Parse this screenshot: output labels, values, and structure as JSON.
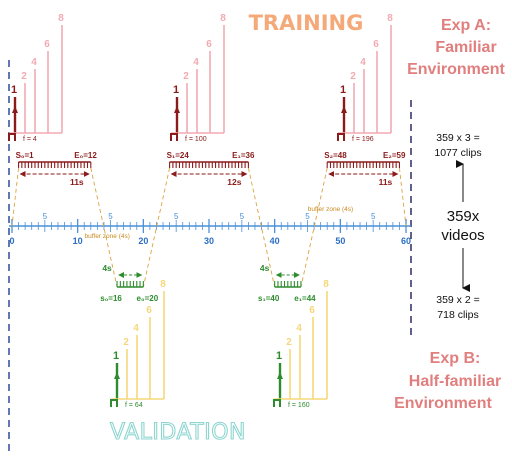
{
  "titles": {
    "training": "TRAINING",
    "validation": "VALIDATION"
  },
  "exp_a": {
    "line1": "Exp A:",
    "line2": "Familiar",
    "line3": "Environment"
  },
  "exp_b": {
    "line1": "Exp B:",
    "line2": "Half-familiar",
    "line3": "Environment"
  },
  "totals": {
    "top_line1": "359 x 3 =",
    "top_line2": "1077 clips",
    "mid_line1": "359x",
    "mid_line2": "videos",
    "bottom_line1": "359 x 2 =",
    "bottom_line2": "718 clips"
  },
  "axis": {
    "min": 0,
    "max": 60,
    "major_labels": [
      "0",
      "10",
      "20",
      "30",
      "40",
      "50",
      "60"
    ],
    "minor_labels": [
      "5",
      "5",
      "5",
      "5",
      "5",
      "5"
    ]
  },
  "buffer_label": "buffer zone (4s)",
  "training_clips": [
    {
      "start": 1,
      "end": 12,
      "start_label": "S₀=1",
      "end_label": "E₀=12",
      "duration": "11s",
      "frame": "f = 4"
    },
    {
      "start": 24,
      "end": 36,
      "start_label": "S₁=24",
      "end_label": "E₁=36",
      "duration": "12s",
      "frame": "f = 100"
    },
    {
      "start": 48,
      "end": 59,
      "start_label": "S₂=48",
      "end_label": "E₂=59",
      "duration": "11s",
      "frame": "f = 196"
    }
  ],
  "validation_clips": [
    {
      "start": 16,
      "end": 20,
      "start_label": "s₀=16",
      "end_label": "e₀=20",
      "duration": "4s",
      "frame": "f = 64"
    },
    {
      "start": 40,
      "end": 44,
      "start_label": "s₁=40",
      "end_label": "e₁=44",
      "duration": "4s",
      "frame": "f = 160"
    }
  ],
  "stair_labels": [
    "1",
    "2",
    "4",
    "6",
    "8"
  ],
  "colors": {
    "training_dark": "#8b1a1a",
    "training_light": "#f2aab2",
    "validation_dark": "#2e8b2e",
    "validation_light": "#f5d77a",
    "axis": "#4a90d9",
    "buffer": "#d9a441",
    "exp_text": "#e17f7f"
  }
}
